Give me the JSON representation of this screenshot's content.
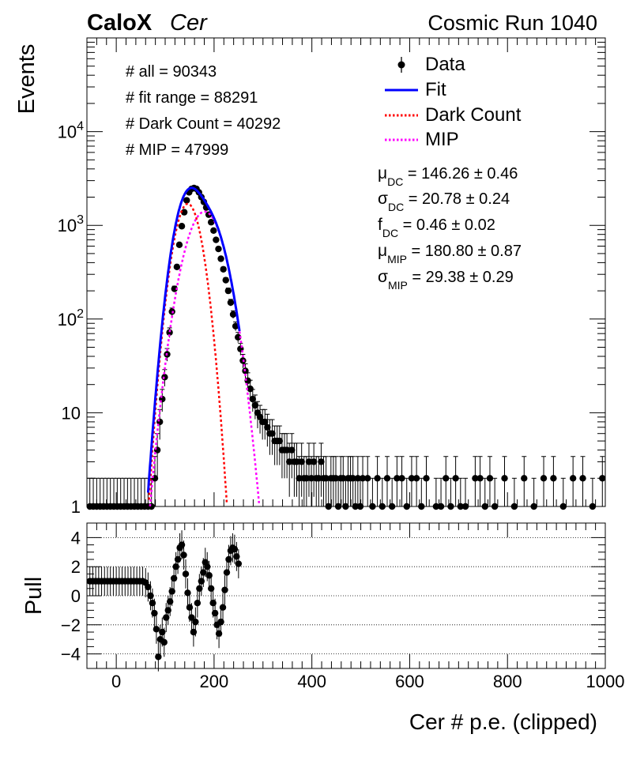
{
  "header": {
    "brand": "CaloX",
    "detector": "Cer",
    "run_label": "Cosmic Run 1040"
  },
  "stats": [
    "# all = 90343",
    "# fit range = 88291",
    "# Dark Count = 40292",
    "# MIP = 47999"
  ],
  "params": [
    {
      "sym": "μ",
      "sub": "DC",
      "text": " = 146.26 ± 0.46"
    },
    {
      "sym": "σ",
      "sub": "DC",
      "text": " = 20.78 ± 0.24"
    },
    {
      "sym": "f",
      "sub": "DC",
      "text": " = 0.46 ± 0.02"
    },
    {
      "sym": "μ",
      "sub": "MIP",
      "text": " = 180.80 ± 0.87"
    },
    {
      "sym": "σ",
      "sub": "MIP",
      "text": " = 29.38 ± 0.29"
    }
  ],
  "legend": [
    {
      "label": "Data",
      "style": "marker",
      "color": "#000000"
    },
    {
      "label": "Fit",
      "style": "solid",
      "color": "#0000ff"
    },
    {
      "label": "Dark Count",
      "style": "dotted",
      "color": "#ff0000"
    },
    {
      "label": "MIP",
      "style": "dotted",
      "color": "#ff00ff"
    }
  ],
  "chart_data": [
    {
      "type": "scatter",
      "panel": "main",
      "ylabel": "Events",
      "log_y": true,
      "xlim": [
        -60,
        1000
      ],
      "ylim": [
        1,
        100000
      ],
      "ytick_labels": [
        "1",
        "10",
        "10^2",
        "10^3",
        "10^4"
      ],
      "dark_count": {
        "mu": 146.26,
        "sigma": 20.78,
        "amplitude": 1700,
        "xrange": [
          65,
          228
        ]
      },
      "mip": {
        "mu": 180.8,
        "sigma": 29.38,
        "amplitude": 1400,
        "xrange": [
          65,
          292
        ]
      },
      "fit_xrange": [
        65,
        252
      ],
      "series": [
        {
          "name": "Data",
          "x": [
            -54,
            -47,
            -40,
            -33,
            -26,
            -19,
            -12,
            -5,
            2,
            9,
            16,
            23,
            30,
            37,
            44,
            51,
            58,
            65,
            72,
            79,
            84,
            89,
            94,
            99,
            104,
            109,
            114,
            119,
            124,
            129,
            134,
            139,
            144,
            149,
            154,
            159,
            164,
            169,
            174,
            179,
            184,
            189,
            194,
            199,
            204,
            209,
            214,
            219,
            224,
            229,
            234,
            239,
            244,
            249,
            254,
            259,
            264,
            269,
            274,
            279,
            284,
            289,
            294,
            299,
            304,
            309,
            314,
            319,
            324,
            329,
            334,
            339,
            344,
            349,
            354,
            359,
            364,
            369,
            374,
            379,
            384,
            389,
            394,
            399,
            404,
            409,
            414,
            419,
            424,
            429,
            434,
            439,
            444,
            449,
            454,
            459,
            464,
            469,
            474,
            479,
            484,
            489,
            494,
            499,
            504,
            514,
            524,
            534,
            544,
            554,
            564,
            574,
            584,
            594,
            604,
            614,
            624,
            634,
            654,
            664,
            674,
            684,
            694,
            704,
            714,
            734,
            744,
            754,
            764,
            774,
            794,
            814,
            834,
            854,
            874,
            894,
            914,
            934,
            954,
            974,
            994
          ],
          "y": [
            1,
            1,
            1,
            1,
            1,
            1,
            1,
            1,
            1,
            1,
            1,
            1,
            1,
            1,
            1,
            1,
            1,
            1,
            1,
            2,
            4,
            8,
            14,
            24,
            42,
            72,
            120,
            210,
            360,
            620,
            980,
            1380,
            1850,
            2250,
            2450,
            2500,
            2450,
            2250,
            2000,
            1780,
            1550,
            1300,
            1080,
            880,
            700,
            560,
            440,
            340,
            260,
            200,
            150,
            112,
            84,
            64,
            48,
            36,
            28,
            22,
            18,
            14,
            12,
            10,
            9,
            8,
            8,
            7,
            6,
            6,
            5,
            5,
            5,
            4,
            4,
            4,
            3,
            4,
            3,
            3,
            2,
            3,
            2,
            2,
            3,
            2,
            3,
            2,
            2,
            3,
            2,
            2,
            1,
            2,
            2,
            2,
            1,
            2,
            2,
            1,
            2,
            2,
            2,
            1,
            2,
            1,
            2,
            2,
            1,
            2,
            1,
            2,
            1,
            2,
            2,
            1,
            2,
            2,
            1,
            2,
            1,
            1,
            2,
            1,
            2,
            1,
            1,
            2,
            2,
            1,
            2,
            1,
            2,
            1,
            2,
            1,
            2,
            2,
            1,
            2,
            2,
            1,
            2
          ]
        }
      ]
    },
    {
      "type": "scatter",
      "panel": "pull",
      "xlabel": "Cer # p.e. (clipped)",
      "ylabel": "Pull",
      "xlim": [
        -60,
        1000
      ],
      "ylim": [
        -5,
        5
      ],
      "xtick_labels": [
        "0",
        "200",
        "400",
        "600",
        "800",
        "1000"
      ],
      "ytick_labels": [
        "4",
        "2",
        "0",
        "−2",
        "−4"
      ],
      "grid": true,
      "series": [
        {
          "name": "Pull",
          "x": [
            -54,
            -48,
            -42,
            -36,
            -30,
            -24,
            -18,
            -12,
            -6,
            0,
            6,
            12,
            18,
            24,
            30,
            36,
            42,
            48,
            54,
            60,
            65,
            70,
            74,
            78,
            82,
            86,
            90,
            94,
            98,
            102,
            106,
            110,
            114,
            118,
            122,
            126,
            130,
            134,
            138,
            142,
            146,
            150,
            154,
            158,
            162,
            166,
            170,
            174,
            178,
            182,
            186,
            190,
            194,
            198,
            202,
            206,
            210,
            214,
            218,
            222,
            226,
            230,
            234,
            238,
            242,
            246,
            250
          ],
          "y": [
            1,
            1,
            1,
            1,
            1,
            1,
            1,
            1,
            1,
            1,
            1,
            1,
            1,
            1,
            1,
            1,
            1,
            1,
            1,
            0.9,
            0.6,
            0,
            -0.5,
            -1.2,
            -2.3,
            -4.2,
            -3,
            -2.5,
            -3.2,
            -1.5,
            -1,
            -0.4,
            0.3,
            1.2,
            2,
            2.5,
            3.3,
            3.5,
            2.8,
            1.5,
            0.2,
            -0.8,
            -1.5,
            -2.5,
            -1.8,
            -0.5,
            0.5,
            1,
            1.6,
            2.3,
            2,
            1.4,
            0.5,
            -0.5,
            -1.2,
            -2,
            -2.6,
            -1.8,
            -0.8,
            0.4,
            1.6,
            2.5,
            3.1,
            3.3,
            3.2,
            2.7,
            2.2
          ]
        }
      ]
    }
  ]
}
